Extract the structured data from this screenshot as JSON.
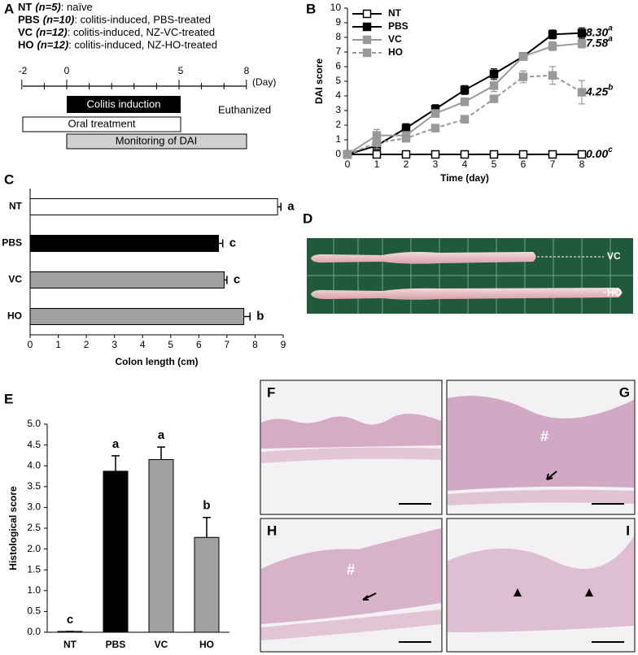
{
  "panel_labels": [
    "A",
    "B",
    "C",
    "D",
    "E"
  ],
  "panel_a": {
    "groups": [
      {
        "name": "NT",
        "n": "(n=5)",
        "desc": ": naïve"
      },
      {
        "name": "PBS",
        "n": "(n=10)",
        "desc": ": colitis-induced, PBS-treated"
      },
      {
        "name": "VC",
        "n": "(n=12)",
        "desc": ": colitis-induced, NZ-VC-treated"
      },
      {
        "name": "HO",
        "n": "(n=12)",
        "desc": ": colitis-induced, NZ-HO-treated"
      }
    ],
    "days": [
      "-2",
      "0",
      "5",
      "8"
    ],
    "day_unit": "(Day)",
    "phases": [
      "Colitis induction",
      "Oral treatment",
      "Monitoring of DAI"
    ],
    "end_label": "Euthanized"
  },
  "chart_data": [
    {
      "type": "line",
      "xlabel": "Time (day)",
      "ylabel": "DAI score",
      "x": [
        0,
        1,
        2,
        3,
        4,
        5,
        6,
        7,
        8
      ],
      "xlim": [
        0,
        8
      ],
      "xticks": [
        0,
        1,
        2,
        3,
        4,
        5,
        6,
        7,
        8
      ],
      "ylim": [
        0,
        10
      ],
      "yticks": [
        0,
        1,
        2,
        3,
        4,
        5,
        6,
        7,
        8,
        9,
        10
      ],
      "legend": "upper left",
      "series": [
        {
          "name": "NT",
          "color": "#000000",
          "fill": "#ffffff",
          "dash": false,
          "values": [
            0,
            0,
            0,
            0,
            0,
            0,
            0,
            0,
            0
          ],
          "end_label": "0.00",
          "end_letter": "c"
        },
        {
          "name": "PBS",
          "color": "#000000",
          "fill": "#000000",
          "dash": false,
          "values": [
            0,
            0.6,
            1.8,
            3.1,
            4.4,
            5.5,
            6.7,
            8.2,
            8.3
          ],
          "errors": [
            0,
            0.1,
            0.3,
            0.3,
            0.3,
            0.35,
            0.2,
            0.3,
            0.35
          ],
          "end_label": "8.30",
          "end_letter": "a"
        },
        {
          "name": "VC",
          "color": "#999999",
          "fill": "#999999",
          "dash": false,
          "values": [
            0,
            1.3,
            1.3,
            2.8,
            3.6,
            4.7,
            6.7,
            7.4,
            7.58
          ],
          "errors": [
            0,
            0.4,
            0.2,
            0.25,
            0.25,
            0.4,
            0.2,
            0.3,
            0.3
          ],
          "end_label": "7.58",
          "end_letter": "a"
        },
        {
          "name": "HO",
          "color": "#999999",
          "fill": "#999999",
          "dash": true,
          "values": [
            0,
            0.8,
            1.1,
            1.8,
            2.4,
            3.8,
            5.3,
            5.4,
            4.25
          ],
          "errors": [
            0,
            0.4,
            0.2,
            0.2,
            0.2,
            0.2,
            0.4,
            0.6,
            0.8
          ],
          "end_label": "4.25",
          "end_letter": "b"
        }
      ]
    },
    {
      "type": "barh",
      "xlabel": "Colon length (cm)",
      "categories": [
        "NT",
        "PBS",
        "VC",
        "HO"
      ],
      "values": [
        8.8,
        6.7,
        6.9,
        7.6
      ],
      "errors": [
        0.12,
        0.15,
        0.1,
        0.22
      ],
      "letters": [
        "a",
        "c",
        "c",
        "b"
      ],
      "colors": [
        "#ffffff",
        "#000000",
        "#a0a0a0",
        "#a0a0a0"
      ],
      "xlim": [
        0,
        9
      ],
      "xticks": [
        0,
        1,
        2,
        3,
        4,
        5,
        6,
        7,
        8,
        9
      ]
    },
    {
      "type": "bar",
      "ylabel": "Histological score",
      "categories": [
        "NT",
        "PBS",
        "VC",
        "HO"
      ],
      "values": [
        0.02,
        3.87,
        4.15,
        2.28
      ],
      "errors": [
        0,
        0.37,
        0.3,
        0.48
      ],
      "letters": [
        "c",
        "a",
        "a",
        "b"
      ],
      "colors": [
        "#ffffff",
        "#000000",
        "#a0a0a0",
        "#a0a0a0"
      ],
      "ylim": [
        0,
        5
      ],
      "yticks": [
        {
          "value": 0,
          "label": "0.0"
        },
        0.5,
        {
          "value": 1,
          "label": "1.0"
        },
        1.5,
        {
          "value": 2,
          "label": "2.0"
        },
        2.5,
        {
          "value": 3,
          "label": "3.0"
        },
        3.5,
        {
          "value": 4,
          "label": "4.0"
        },
        4.5,
        {
          "value": 5,
          "label": "5.0"
        }
      ]
    }
  ],
  "panel_d": {
    "samples": [
      "VC",
      "HO"
    ]
  },
  "histology": {
    "panels": [
      "F",
      "G",
      "H",
      "I"
    ],
    "marks": [
      "#",
      "#"
    ]
  }
}
